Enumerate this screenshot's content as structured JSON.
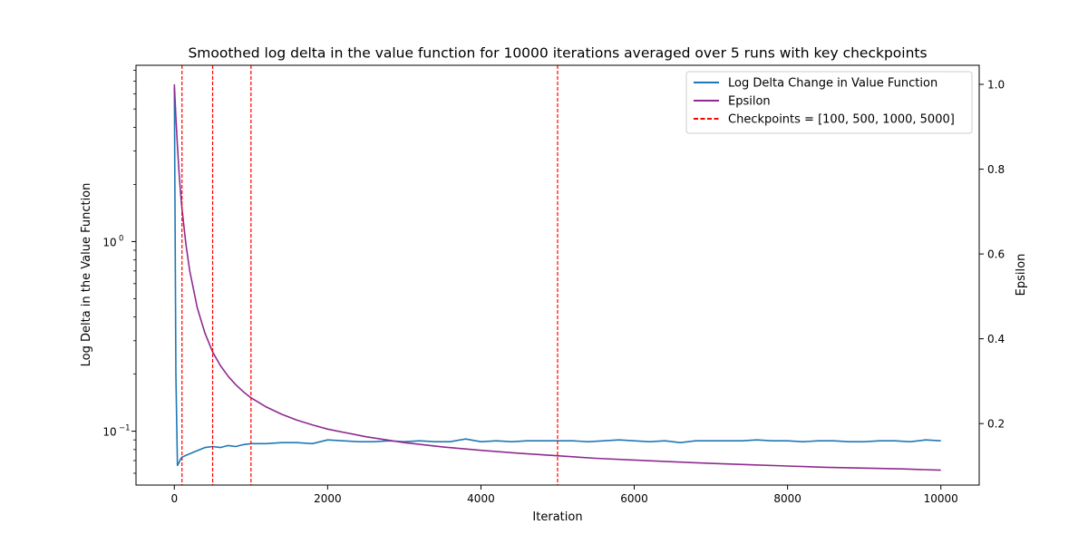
{
  "chart_data": {
    "type": "line",
    "title": "Smoothed log delta in the value function for 10000 iterations averaged over 5 runs with key checkpoints",
    "xlabel": "Iteration",
    "ylabel_left": "Log Delta in the Value Function",
    "ylabel_right": "Epsilon",
    "x_scale": "linear",
    "y_left_scale": "log",
    "xlim": [
      -500,
      10500
    ],
    "ylim_left": [
      0.052,
      8.5
    ],
    "ylim_right": [
      0.055,
      1.045
    ],
    "x_ticks": [
      0,
      2000,
      4000,
      6000,
      8000,
      10000
    ],
    "x_tick_labels": [
      "0",
      "2000",
      "4000",
      "6000",
      "8000",
      "10000"
    ],
    "y_left_major_ticks": [
      0.1,
      1
    ],
    "y_left_tick_labels": [
      "10",
      "10"
    ],
    "y_left_tick_exponents": [
      "−1",
      "0"
    ],
    "y_right_ticks": [
      0.2,
      0.4,
      0.6,
      0.8,
      1.0
    ],
    "y_right_tick_labels": [
      "0.2",
      "0.4",
      "0.6",
      "0.8",
      "1.0"
    ],
    "grid": false,
    "legend_position": "top-right",
    "legend": [
      {
        "label": "Log Delta Change in Value Function",
        "color": "#1f77b4",
        "style": "solid"
      },
      {
        "label": "Epsilon",
        "color": "#8e2b8e",
        "style": "solid"
      },
      {
        "label": "Checkpoints = [100, 500, 1000, 5000]",
        "color": "#ff0000",
        "style": "dashed"
      }
    ],
    "series": [
      {
        "name": "Log Delta Change in Value Function",
        "axis": "left",
        "color": "#1f77b4",
        "x": [
          0,
          20,
          40,
          60,
          80,
          100,
          200,
          300,
          400,
          500,
          600,
          700,
          800,
          900,
          1000,
          1200,
          1400,
          1600,
          1800,
          2000,
          2200,
          2400,
          2600,
          2800,
          3000,
          3200,
          3400,
          3600,
          3800,
          4000,
          4200,
          4400,
          4600,
          4800,
          5000,
          5200,
          5400,
          5600,
          5800,
          6000,
          6200,
          6400,
          6600,
          6800,
          7000,
          7200,
          7400,
          7600,
          7800,
          8000,
          8200,
          8400,
          8600,
          8800,
          9000,
          9200,
          9400,
          9600,
          9800,
          10000
        ],
        "y": [
          6.5,
          0.2,
          0.066,
          0.068,
          0.071,
          0.073,
          0.076,
          0.079,
          0.082,
          0.083,
          0.082,
          0.084,
          0.083,
          0.085,
          0.086,
          0.086,
          0.087,
          0.087,
          0.086,
          0.09,
          0.089,
          0.088,
          0.088,
          0.089,
          0.088,
          0.089,
          0.088,
          0.088,
          0.091,
          0.088,
          0.089,
          0.088,
          0.089,
          0.089,
          0.089,
          0.089,
          0.088,
          0.089,
          0.09,
          0.089,
          0.088,
          0.089,
          0.087,
          0.089,
          0.089,
          0.089,
          0.089,
          0.09,
          0.089,
          0.089,
          0.088,
          0.089,
          0.089,
          0.088,
          0.088,
          0.089,
          0.089,
          0.088,
          0.09,
          0.089
        ]
      },
      {
        "name": "Epsilon",
        "axis": "right",
        "color": "#8e2b8e",
        "x": [
          0,
          20,
          40,
          60,
          80,
          100,
          150,
          200,
          300,
          400,
          500,
          600,
          700,
          800,
          900,
          1000,
          1200,
          1400,
          1600,
          1800,
          2000,
          2500,
          3000,
          3500,
          4000,
          4500,
          5000,
          5500,
          6000,
          6500,
          7000,
          7500,
          8000,
          8500,
          9000,
          9500,
          10000
        ],
        "y": [
          1.0,
          0.922,
          0.855,
          0.798,
          0.749,
          0.707,
          0.624,
          0.561,
          0.473,
          0.413,
          0.369,
          0.337,
          0.312,
          0.292,
          0.275,
          0.261,
          0.239,
          0.222,
          0.208,
          0.197,
          0.187,
          0.169,
          0.155,
          0.145,
          0.137,
          0.13,
          0.124,
          0.118,
          0.114,
          0.11,
          0.106,
          0.103,
          0.1,
          0.097,
          0.095,
          0.093,
          0.09
        ]
      }
    ],
    "checkpoints": [
      100,
      500,
      1000,
      5000
    ]
  }
}
